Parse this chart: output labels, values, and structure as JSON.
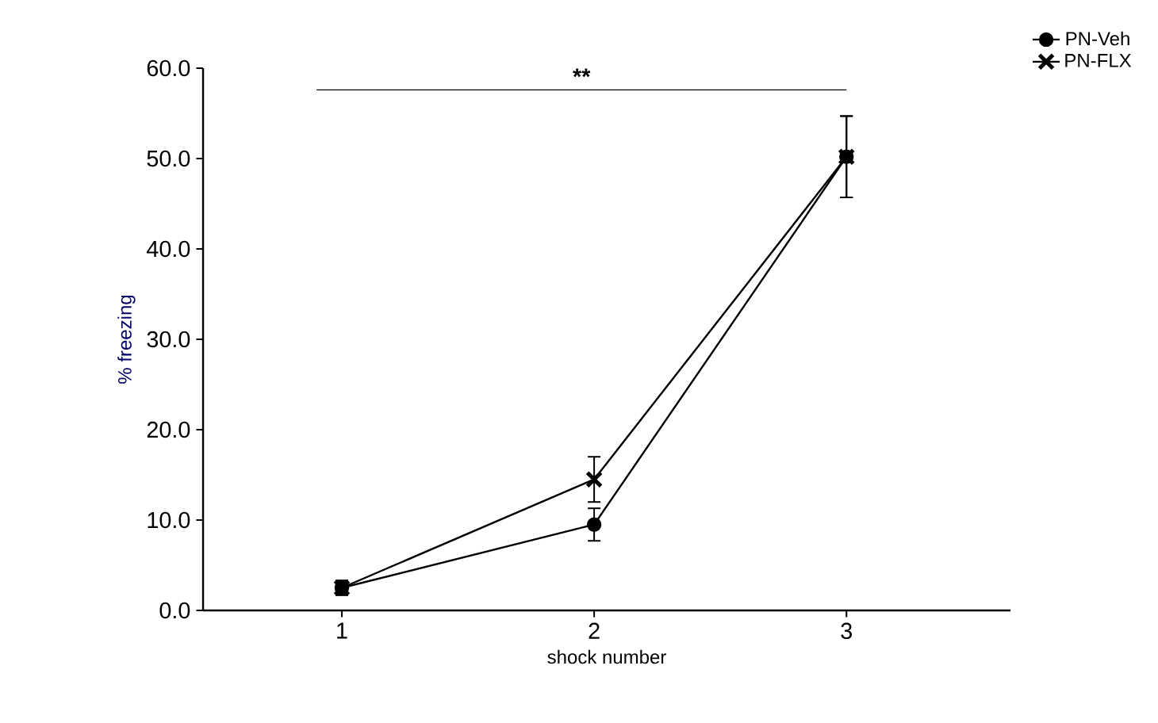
{
  "chart_data": {
    "type": "line",
    "xlabel": "shock number",
    "ylabel": "% freezing",
    "categories": [
      "1",
      "2",
      "3"
    ],
    "series": [
      {
        "name": "PN-Veh",
        "color": "#000000",
        "marker": "circle",
        "values": [
          2.5,
          9.5,
          50.2
        ],
        "errors": [
          0.8,
          1.8,
          4.5
        ]
      },
      {
        "name": "PN-FLX",
        "color": "#000000",
        "marker": "cross",
        "values": [
          2.5,
          14.5,
          50.2
        ],
        "errors": [
          0.8,
          2.5,
          4.5
        ]
      }
    ],
    "ylim": [
      0,
      60
    ],
    "yticks": [
      {
        "value": 0,
        "label": "0.0"
      },
      {
        "value": 10,
        "label": "10.0"
      },
      {
        "value": 20,
        "label": "20.0"
      },
      {
        "value": 30,
        "label": "30.0"
      },
      {
        "value": 40,
        "label": "40.0"
      },
      {
        "value": 50,
        "label": "50.0"
      },
      {
        "value": 60,
        "label": "60.0"
      }
    ],
    "annotations": [
      "**"
    ],
    "legend": "top right",
    "grid": false
  }
}
